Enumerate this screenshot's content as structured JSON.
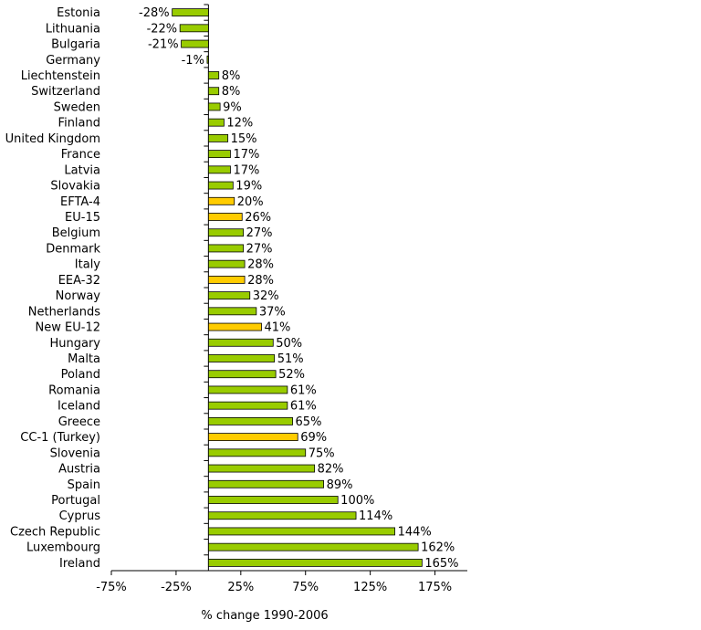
{
  "chart_data": {
    "type": "bar",
    "orientation": "horizontal",
    "xlabel": "% change 1990-2006",
    "ylabel": "",
    "title": "",
    "xlim": [
      -75,
      200
    ],
    "xticks": [
      -75,
      -25,
      25,
      75,
      125,
      175
    ],
    "xtick_labels": [
      "-75%",
      "-25%",
      "25%",
      "75%",
      "125%",
      "175%"
    ],
    "grid": false,
    "colors": {
      "country": "#99cc00",
      "aggregate": "#ffcc00",
      "outline": "#000000"
    },
    "categories": [
      {
        "name": "Estonia",
        "value": -28,
        "label": "-28%",
        "group": "country"
      },
      {
        "name": "Lithuania",
        "value": -22,
        "label": "-22%",
        "group": "country"
      },
      {
        "name": "Bulgaria",
        "value": -21,
        "label": "-21%",
        "group": "country"
      },
      {
        "name": "Germany",
        "value": -1,
        "label": "-1%",
        "group": "country"
      },
      {
        "name": "Liechtenstein",
        "value": 8,
        "label": "8%",
        "group": "country"
      },
      {
        "name": "Switzerland",
        "value": 8,
        "label": "8%",
        "group": "country"
      },
      {
        "name": "Sweden",
        "value": 9,
        "label": "9%",
        "group": "country"
      },
      {
        "name": "Finland",
        "value": 12,
        "label": "12%",
        "group": "country"
      },
      {
        "name": "United Kingdom",
        "value": 15,
        "label": "15%",
        "group": "country"
      },
      {
        "name": "France",
        "value": 17,
        "label": "17%",
        "group": "country"
      },
      {
        "name": "Latvia",
        "value": 17,
        "label": "17%",
        "group": "country"
      },
      {
        "name": "Slovakia",
        "value": 19,
        "label": "19%",
        "group": "country"
      },
      {
        "name": "EFTA-4",
        "value": 20,
        "label": "20%",
        "group": "aggregate"
      },
      {
        "name": "EU-15",
        "value": 26,
        "label": "26%",
        "group": "aggregate"
      },
      {
        "name": "Belgium",
        "value": 27,
        "label": "27%",
        "group": "country"
      },
      {
        "name": "Denmark",
        "value": 27,
        "label": "27%",
        "group": "country"
      },
      {
        "name": "Italy",
        "value": 28,
        "label": "28%",
        "group": "country"
      },
      {
        "name": "EEA-32",
        "value": 28,
        "label": "28%",
        "group": "aggregate"
      },
      {
        "name": "Norway",
        "value": 32,
        "label": "32%",
        "group": "country"
      },
      {
        "name": "Netherlands",
        "value": 37,
        "label": "37%",
        "group": "country"
      },
      {
        "name": "New EU-12",
        "value": 41,
        "label": "41%",
        "group": "aggregate"
      },
      {
        "name": "Hungary",
        "value": 50,
        "label": "50%",
        "group": "country"
      },
      {
        "name": "Malta",
        "value": 51,
        "label": "51%",
        "group": "country"
      },
      {
        "name": "Poland",
        "value": 52,
        "label": "52%",
        "group": "country"
      },
      {
        "name": "Romania",
        "value": 61,
        "label": "61%",
        "group": "country"
      },
      {
        "name": "Iceland",
        "value": 61,
        "label": "61%",
        "group": "country"
      },
      {
        "name": "Greece",
        "value": 65,
        "label": "65%",
        "group": "country"
      },
      {
        "name": "CC-1 (Turkey)",
        "value": 69,
        "label": "69%",
        "group": "aggregate"
      },
      {
        "name": "Slovenia",
        "value": 75,
        "label": "75%",
        "group": "country"
      },
      {
        "name": "Austria",
        "value": 82,
        "label": "82%",
        "group": "country"
      },
      {
        "name": "Spain",
        "value": 89,
        "label": "89%",
        "group": "country"
      },
      {
        "name": "Portugal",
        "value": 100,
        "label": "100%",
        "group": "country"
      },
      {
        "name": "Cyprus",
        "value": 114,
        "label": "114%",
        "group": "country"
      },
      {
        "name": "Czech Republic",
        "value": 144,
        "label": "144%",
        "group": "country"
      },
      {
        "name": "Luxembourg",
        "value": 162,
        "label": "162%",
        "group": "country"
      },
      {
        "name": "Ireland",
        "value": 165,
        "label": "165%",
        "group": "country"
      }
    ]
  }
}
